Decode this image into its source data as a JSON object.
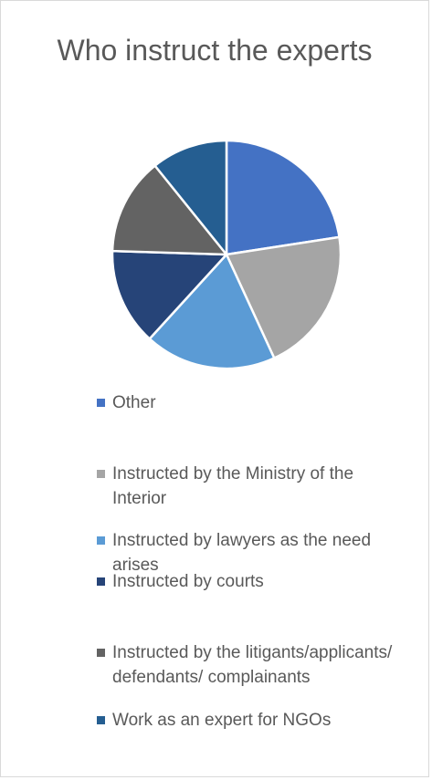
{
  "chart_data": {
    "type": "pie",
    "title": "Who instruct the experts",
    "categories": [
      "Other",
      "Instructed by the Ministry of the Interior",
      "Instructed by lawyers as the need arises",
      "Instructed by courts",
      "Instructed by the litigants/applicants/ defendants/ complainants",
      "Work as an expert for NGOs"
    ],
    "values": [
      23,
      21,
      19,
      14,
      14,
      11
    ],
    "colors": [
      "#4472c4",
      "#a5a5a5",
      "#5b9bd5",
      "#264478",
      "#636363",
      "#255e91"
    ],
    "legend": "bottom"
  }
}
